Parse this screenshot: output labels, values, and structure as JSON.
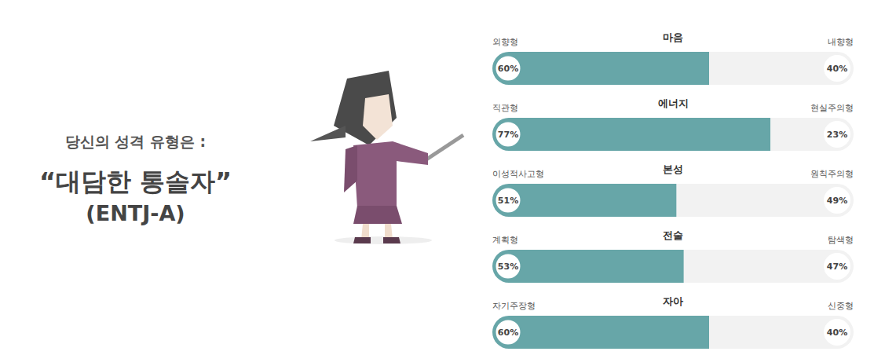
{
  "header": {
    "intro": "당신의 성격 유형은 :",
    "type_name": "“대담한 통솔자”",
    "type_code": "(ENTJ-A)"
  },
  "chart_data": {
    "type": "bar",
    "orientation": "horizontal",
    "stacked": true,
    "data_labels": true,
    "tick_labels": false,
    "categories": [
      "마음",
      "에너지",
      "본성",
      "전술",
      "자아"
    ],
    "left_traits": [
      "외향형",
      "직관형",
      "이성적사고형",
      "계획형",
      "자기주장형"
    ],
    "right_traits": [
      "내향형",
      "현실주의형",
      "원칙주의형",
      "탐색형",
      "신중형"
    ],
    "values": [
      60,
      77,
      51,
      53,
      60
    ],
    "value_labels": [
      "60%",
      "77%",
      "51%",
      "53%",
      "60%"
    ],
    "right_values": [
      40,
      23,
      49,
      47,
      40
    ],
    "right_value_labels": [
      "40%",
      "23%",
      "49%",
      "47%",
      "40%"
    ],
    "color": "#67a6a8",
    "xlim": [
      0,
      100
    ]
  }
}
